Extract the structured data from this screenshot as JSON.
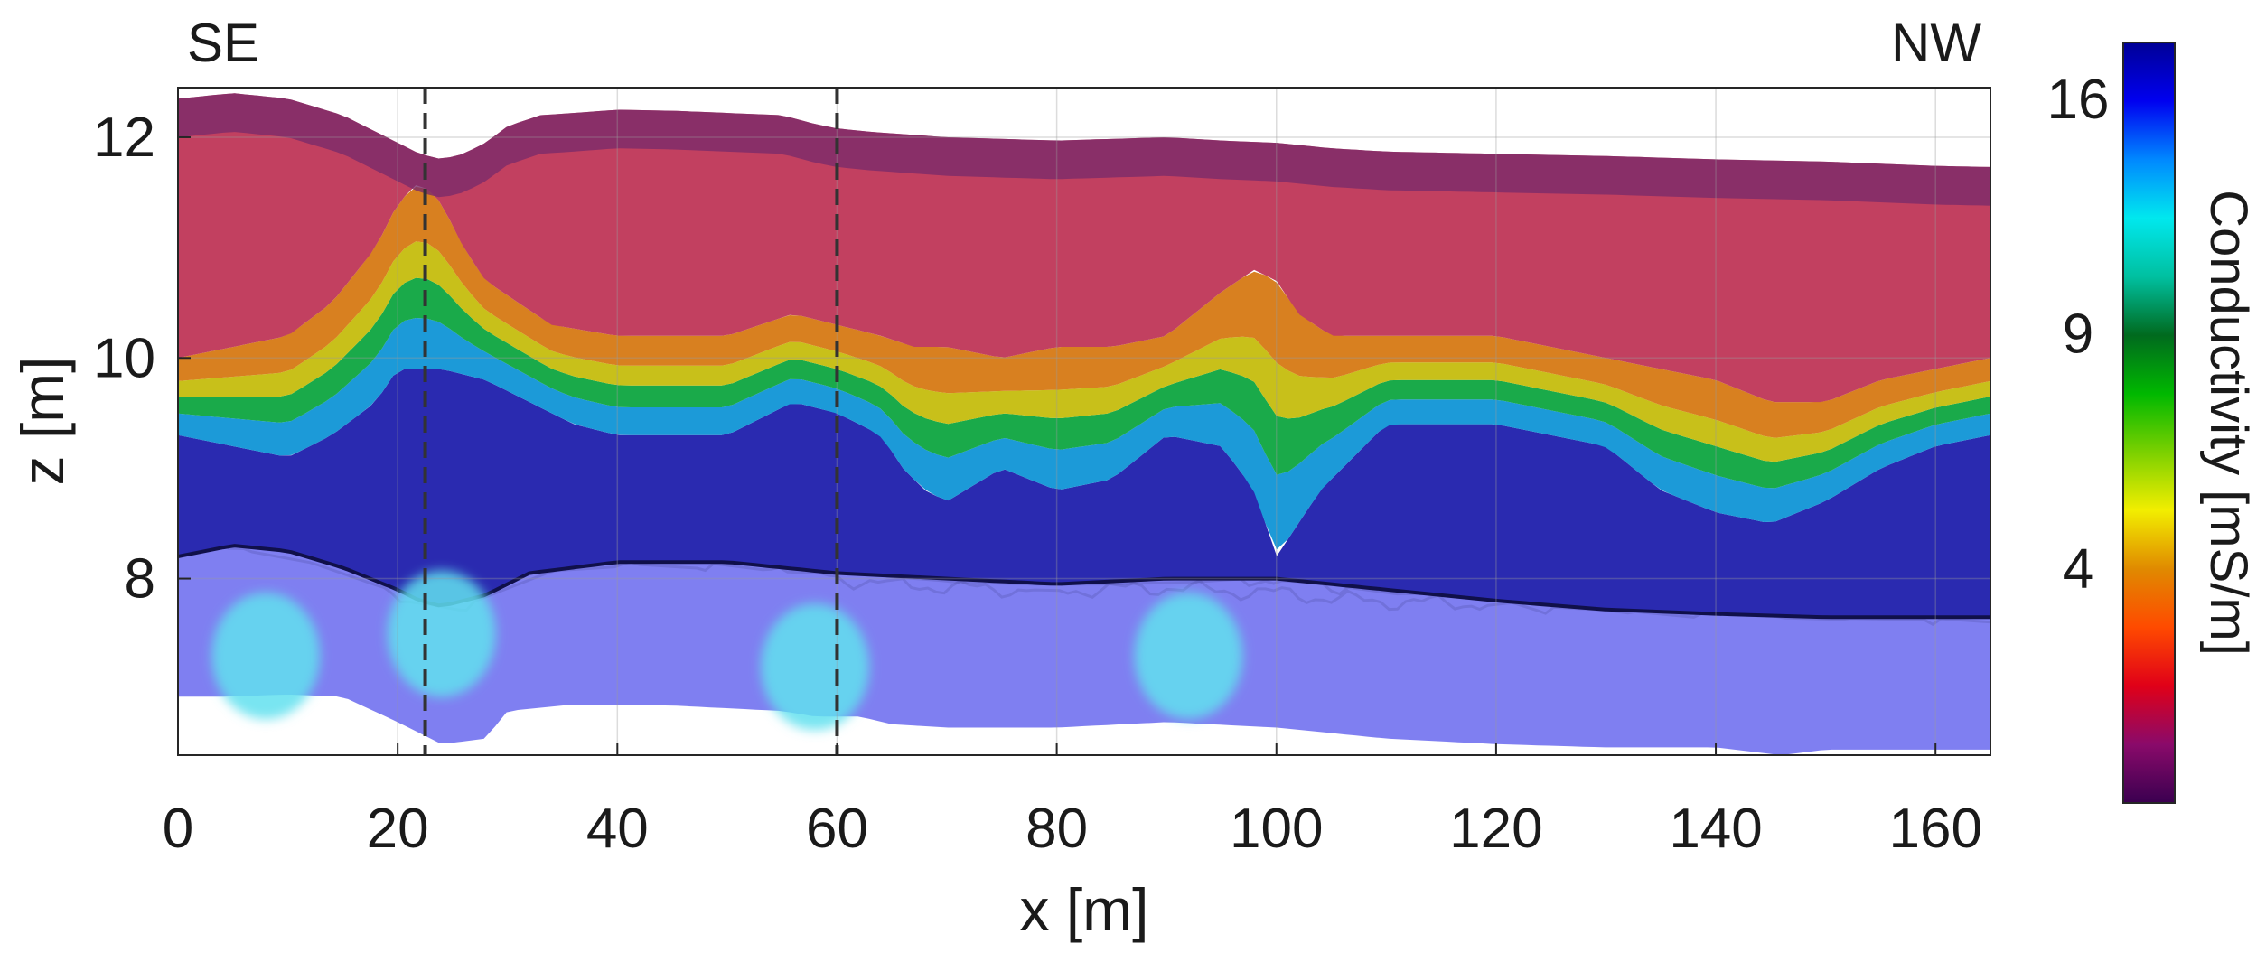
{
  "chart_data": {
    "type": "heatmap",
    "corner_labels": {
      "left": "SE",
      "right": "NW"
    },
    "xlabel": "x [m]",
    "ylabel": "z [m]",
    "xlim": [
      0,
      165
    ],
    "ylim": [
      6.4,
      12.45
    ],
    "xticks": [
      0,
      20,
      40,
      60,
      80,
      100,
      120,
      140,
      160
    ],
    "yticks": [
      8,
      10,
      12
    ],
    "grid": true,
    "vertical_markers": [
      22.5,
      60
    ],
    "colorbar": {
      "label": "Conductivity [mS/m]",
      "ticks": [
        4,
        9,
        16
      ],
      "sqrt_scale": true,
      "range": [
        1,
        18
      ],
      "colormap_stops": [
        "#3a0050",
        "#8a0a6a",
        "#e00018",
        "#ff4a00",
        "#e08a00",
        "#f2ee00",
        "#7ad000",
        "#00b800",
        "#006a1e",
        "#00c0a0",
        "#00e8ee",
        "#0088ff",
        "#0000f0",
        "#000096"
      ]
    },
    "surface_profile": {
      "x": [
        0,
        5,
        10,
        15,
        18,
        20,
        22,
        24,
        26,
        28,
        30,
        33,
        36,
        40,
        45,
        50,
        55,
        58,
        60,
        63,
        70,
        80,
        90,
        95,
        100,
        105,
        110,
        120,
        130,
        140,
        150,
        160,
        165
      ],
      "z": [
        12.35,
        12.4,
        12.35,
        12.2,
        12.05,
        11.95,
        11.85,
        11.8,
        11.85,
        11.95,
        12.1,
        12.2,
        12.22,
        12.25,
        12.24,
        12.22,
        12.2,
        12.12,
        12.08,
        12.05,
        12.0,
        11.97,
        12.0,
        11.97,
        11.95,
        11.9,
        11.87,
        11.85,
        11.83,
        11.8,
        11.78,
        11.74,
        11.73
      ]
    },
    "conductive_top": {
      "x": [
        0,
        5,
        10,
        14,
        18,
        20,
        22,
        24,
        26,
        28,
        31,
        34,
        40,
        50,
        56,
        60,
        64,
        67,
        70,
        75,
        80,
        85,
        90,
        95,
        98,
        100,
        102,
        105,
        110,
        120,
        130,
        140,
        145,
        150,
        155,
        160,
        165
      ],
      "z": [
        10.0,
        10.1,
        10.2,
        10.5,
        11.0,
        11.4,
        11.6,
        11.4,
        11.0,
        10.7,
        10.5,
        10.3,
        10.2,
        10.2,
        10.4,
        10.3,
        10.2,
        10.1,
        10.1,
        10.0,
        10.1,
        10.1,
        10.2,
        10.6,
        10.8,
        10.7,
        10.4,
        10.2,
        10.2,
        10.2,
        10.0,
        9.8,
        9.6,
        9.6,
        9.8,
        9.9,
        10.0
      ]
    },
    "conductive_bottom": {
      "x": [
        0,
        5,
        10,
        14,
        18,
        20,
        24,
        28,
        32,
        36,
        40,
        50,
        56,
        60,
        64,
        66,
        68,
        70,
        75,
        80,
        85,
        90,
        95,
        98,
        100,
        104,
        110,
        120,
        130,
        135,
        140,
        145,
        150,
        155,
        160,
        165
      ],
      "z": [
        9.3,
        9.2,
        9.1,
        9.3,
        9.6,
        9.9,
        9.9,
        9.8,
        9.6,
        9.4,
        9.3,
        9.3,
        9.6,
        9.5,
        9.3,
        9.0,
        8.8,
        8.7,
        9.0,
        8.8,
        8.9,
        9.3,
        9.2,
        8.8,
        8.2,
        8.8,
        9.4,
        9.4,
        9.2,
        8.8,
        8.6,
        8.5,
        8.7,
        9.0,
        9.2,
        9.3
      ]
    },
    "radar_bottom": {
      "x": [
        0,
        5,
        10,
        15,
        20,
        22,
        24,
        28,
        32,
        40,
        50,
        60,
        70,
        80,
        90,
        100,
        110,
        120,
        130,
        140,
        150,
        160,
        165
      ],
      "z": [
        8.2,
        8.3,
        8.25,
        8.1,
        7.9,
        7.8,
        7.75,
        7.85,
        8.05,
        8.15,
        8.15,
        8.05,
        8.0,
        7.95,
        8.0,
        8.0,
        7.9,
        7.8,
        7.72,
        7.68,
        7.65,
        7.65,
        7.65
      ]
    },
    "model_bottom": {
      "x": [
        0,
        4,
        10,
        15,
        20,
        24,
        28,
        30,
        35,
        45,
        55,
        58,
        62,
        65,
        70,
        80,
        90,
        100,
        110,
        120,
        130,
        140,
        146,
        150,
        160,
        165
      ],
      "z": [
        6.93,
        6.93,
        6.95,
        6.93,
        6.7,
        6.5,
        6.55,
        6.8,
        6.85,
        6.85,
        6.8,
        6.75,
        6.75,
        6.68,
        6.65,
        6.65,
        6.7,
        6.65,
        6.55,
        6.5,
        6.47,
        6.47,
        6.4,
        6.45,
        6.45,
        6.45
      ]
    },
    "deep_anomalies": [
      {
        "x": 8,
        "z": 7.3,
        "conductivity": 11
      },
      {
        "x": 24,
        "z": 7.5,
        "conductivity": 12
      },
      {
        "x": 58,
        "z": 7.2,
        "conductivity": 13
      },
      {
        "x": 92,
        "z": 7.3,
        "conductivity": 13
      }
    ]
  }
}
